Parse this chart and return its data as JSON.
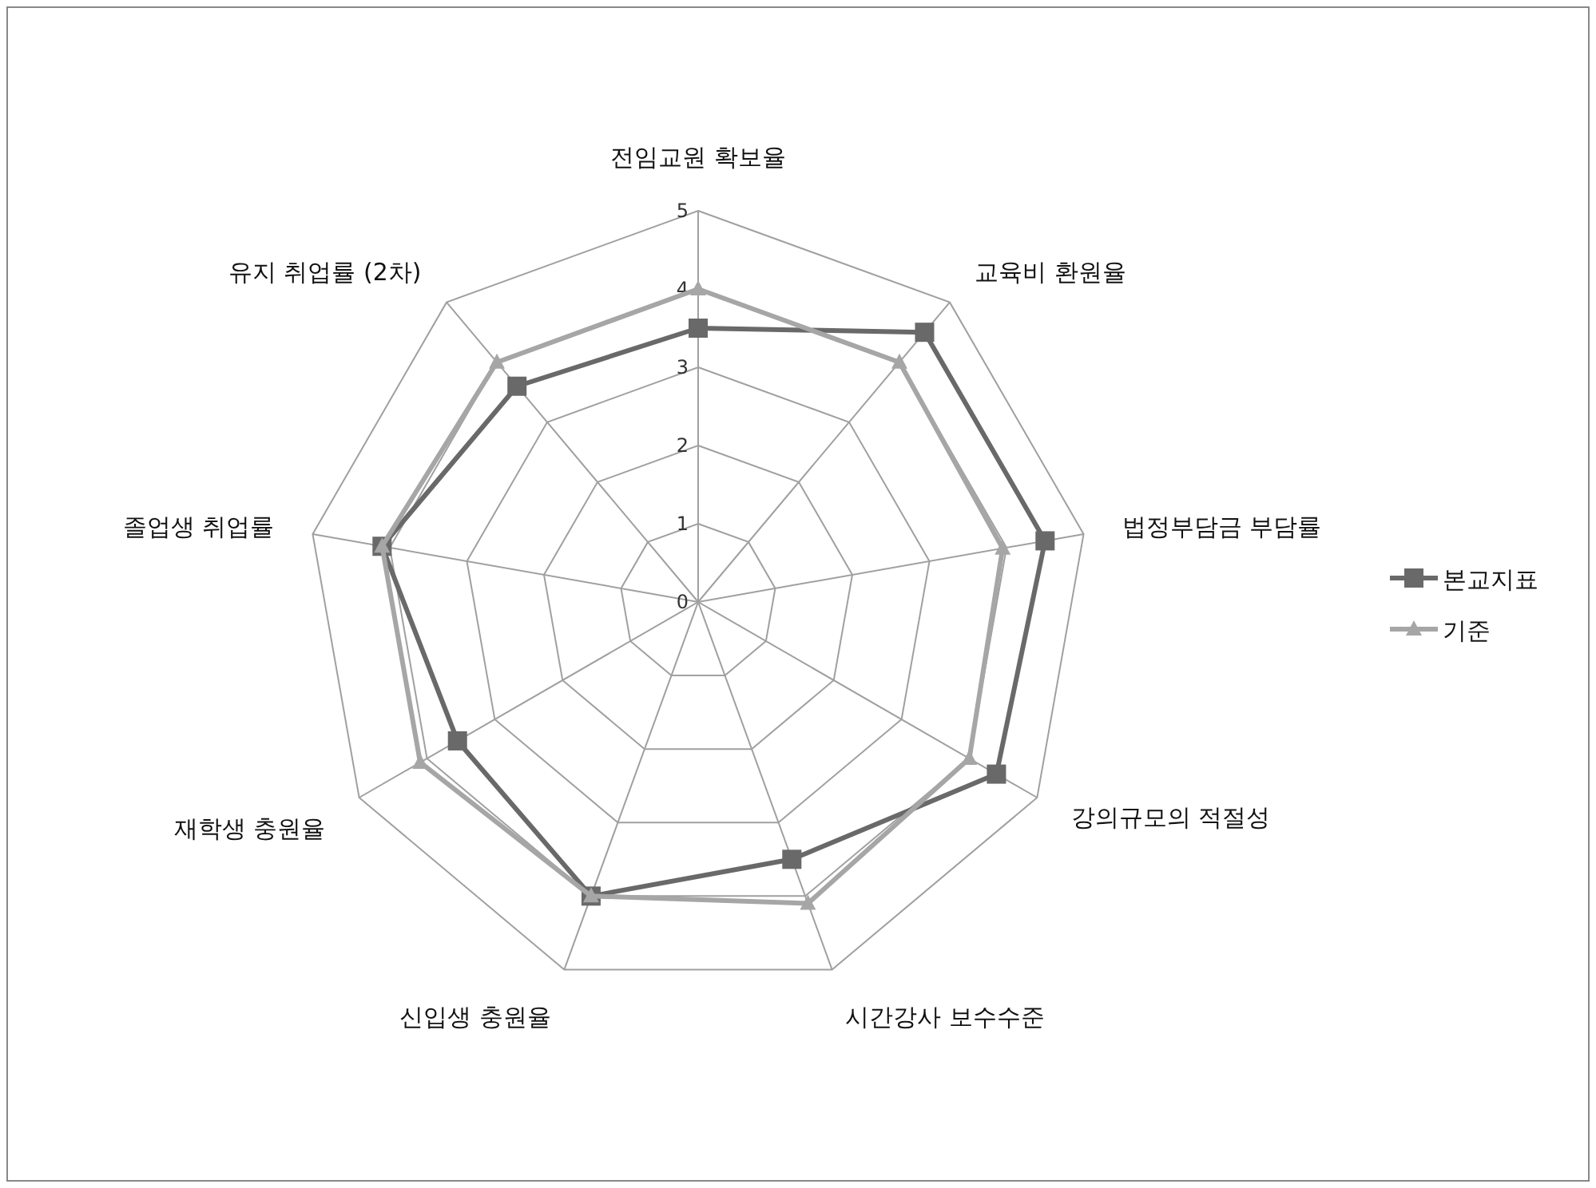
{
  "chart_data": {
    "type": "radar",
    "categories": [
      "전임교원 확보율",
      "교육비 환원율",
      "법정부담금 부담률",
      "강의규모의 적절성",
      "시간강사 보수수준",
      "신입생 충원율",
      "재학생 충원율",
      "졸업생 취업률",
      "유지 취업률 (2차)"
    ],
    "series": [
      {
        "name": "본교지표",
        "color": "#696969",
        "marker": "square",
        "values": [
          3.5,
          4.5,
          4.5,
          4.4,
          3.5,
          4.0,
          3.55,
          4.1,
          3.6
        ]
      },
      {
        "name": "기준",
        "color": "#a6a6a6",
        "marker": "triangle",
        "values": [
          4.0,
          4.0,
          3.95,
          4.0,
          4.1,
          4.0,
          4.1,
          4.1,
          4.0
        ]
      }
    ],
    "ylim": [
      0,
      5
    ],
    "yticks": [
      0,
      1,
      2,
      3,
      4,
      5
    ],
    "grid": true,
    "legend": "right"
  }
}
